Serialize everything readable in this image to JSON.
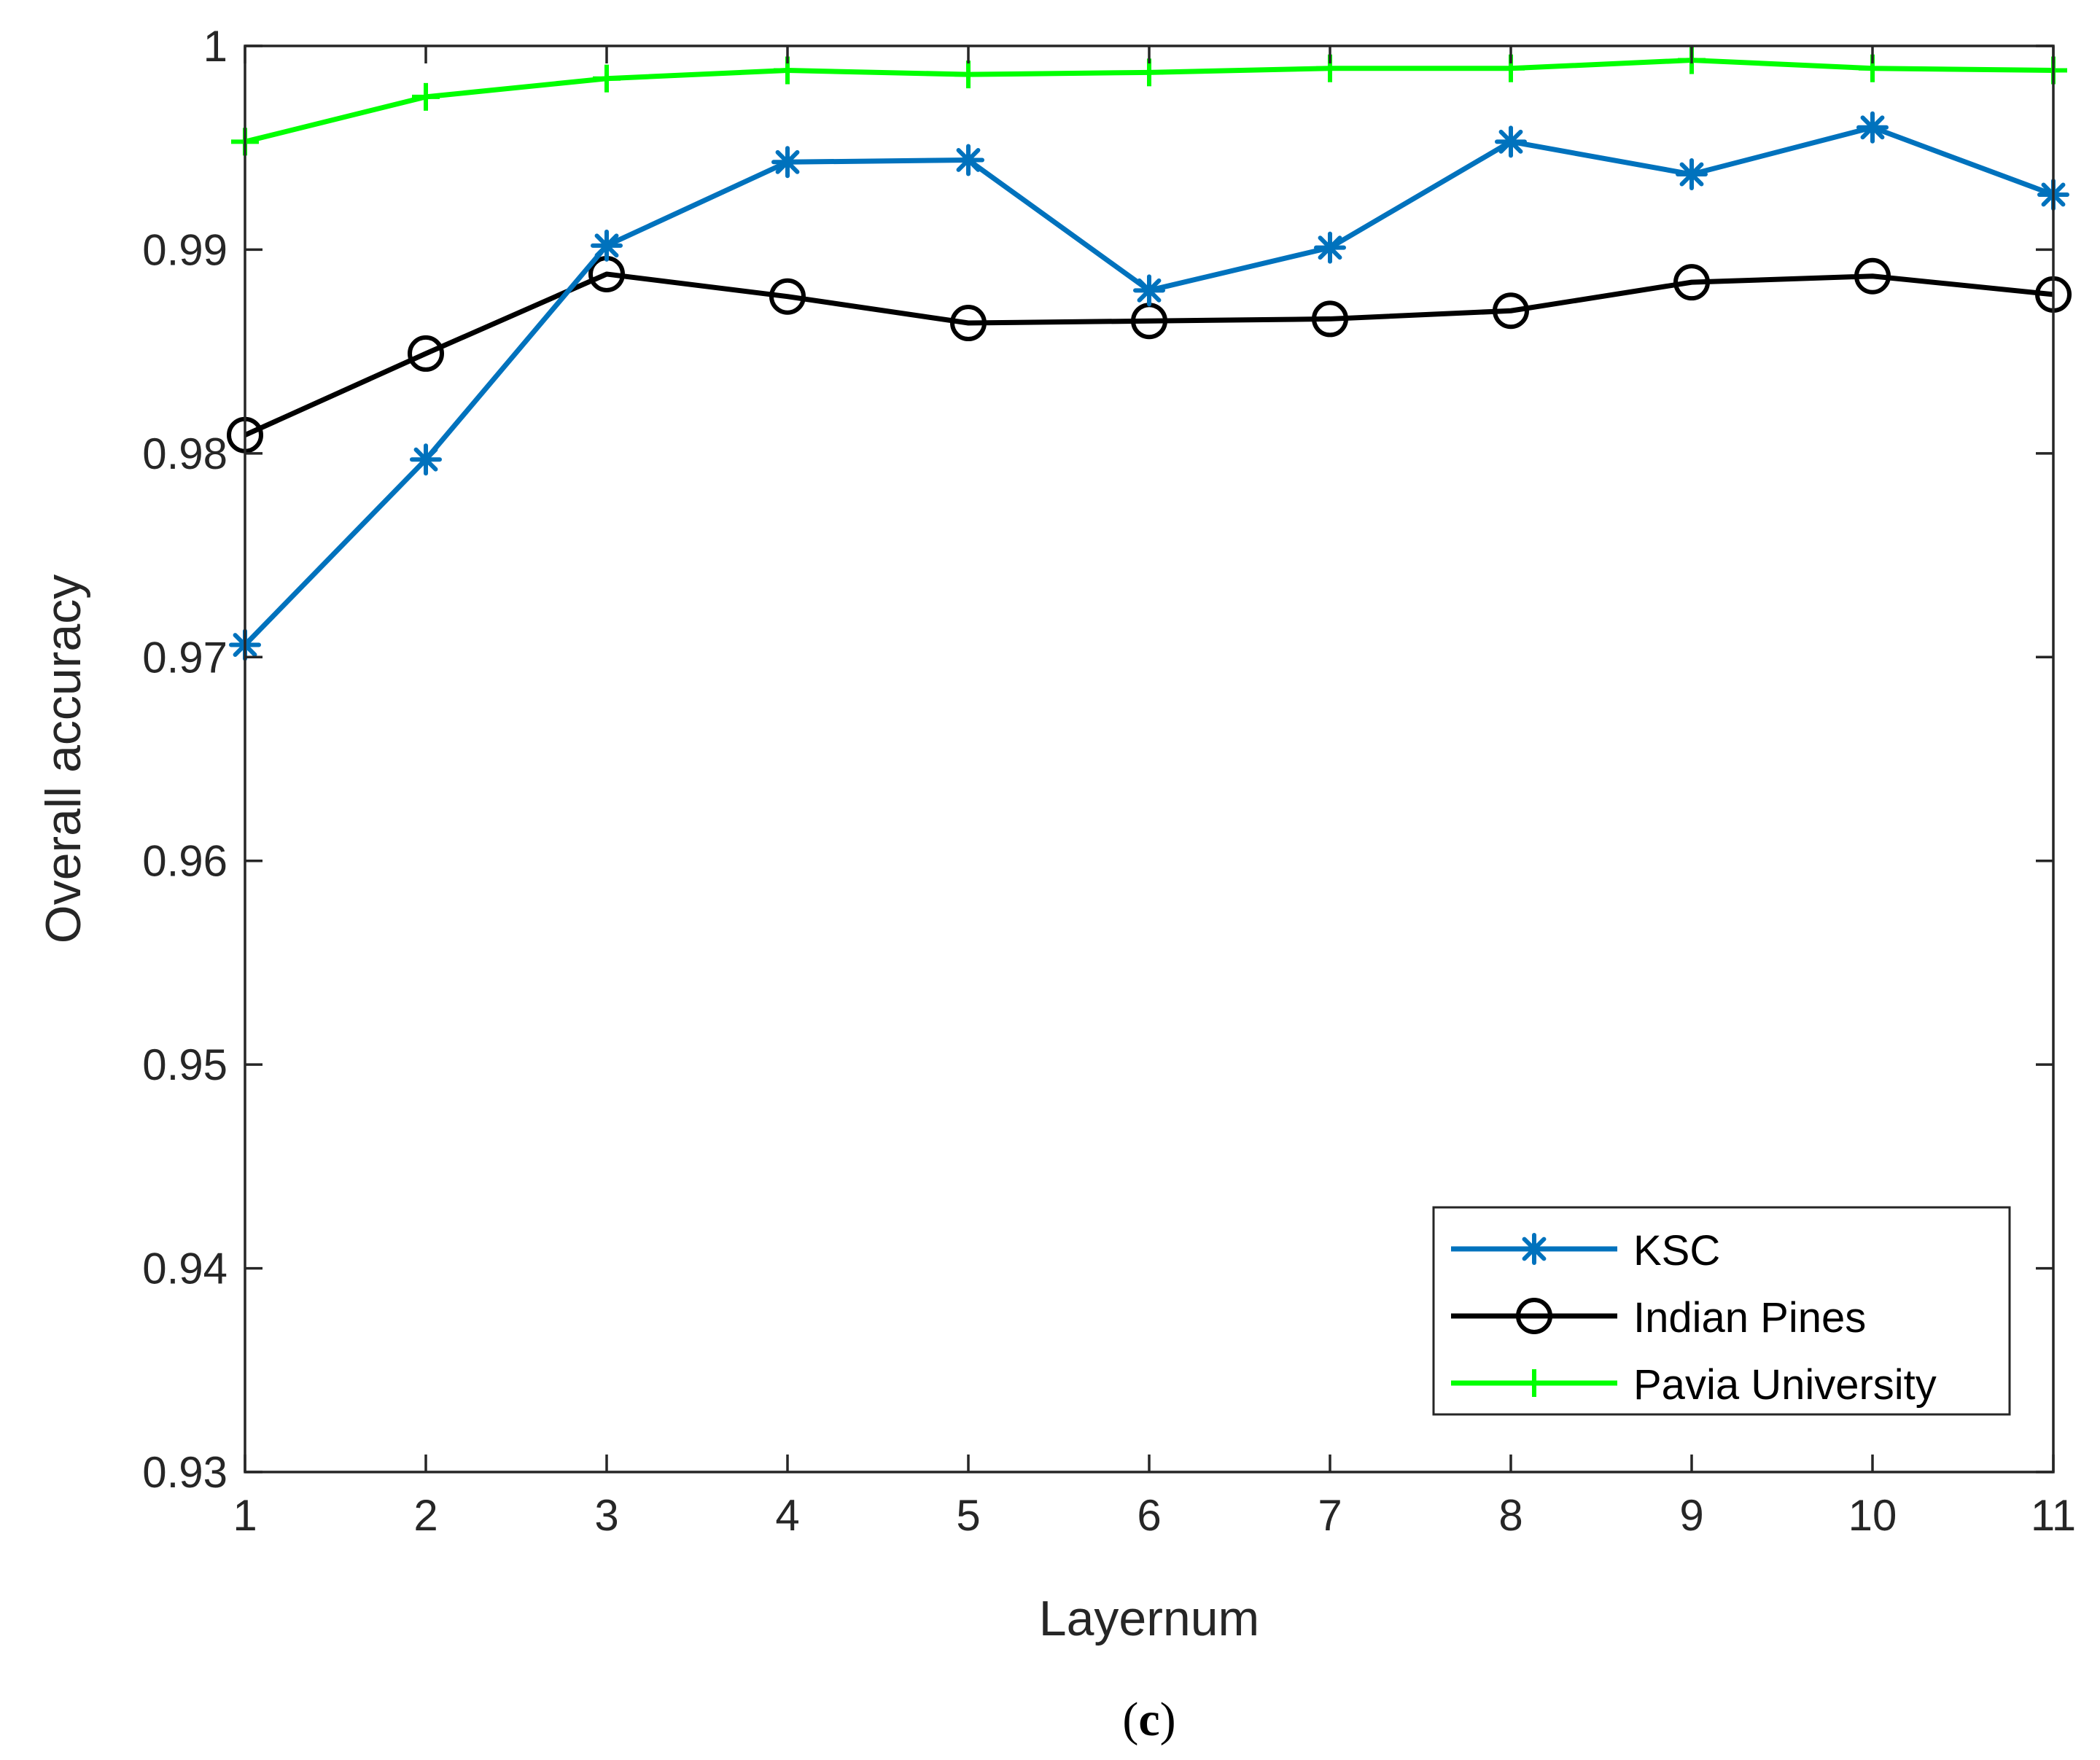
{
  "caption": {
    "open": "(",
    "letter": "c",
    "close": ")"
  },
  "chart_data": {
    "type": "line",
    "xlabel": "Layernum",
    "ylabel": "Overall accuracy",
    "x": [
      1,
      2,
      3,
      4,
      5,
      6,
      7,
      8,
      9,
      10,
      11
    ],
    "xlim": [
      1,
      11
    ],
    "ylim": [
      0.93,
      1
    ],
    "xticks": [
      1,
      2,
      3,
      4,
      5,
      6,
      7,
      8,
      9,
      10,
      11
    ],
    "yticks": [
      0.93,
      0.94,
      0.95,
      0.96,
      0.97,
      0.98,
      0.99,
      1
    ],
    "ytick_labels": [
      "0.93",
      "0.94",
      "0.95",
      "0.96",
      "0.97",
      "0.98",
      "0.99",
      "1"
    ],
    "grid": false,
    "legend_position": "bottom-right",
    "series": [
      {
        "name": "KSC",
        "color": "#0072BD",
        "marker": "asterisk",
        "values": [
          0.9706,
          0.9797,
          0.9902,
          0.9943,
          0.9944,
          0.988,
          0.9901,
          0.9953,
          0.9937,
          0.996,
          0.9927
        ]
      },
      {
        "name": "Indian Pines",
        "color": "#000000",
        "marker": "circle",
        "values": [
          0.9809,
          0.9849,
          0.9888,
          0.9877,
          0.9864,
          0.9865,
          0.9866,
          0.987,
          0.9884,
          0.9887,
          0.9878
        ]
      },
      {
        "name": "Pavia University",
        "color": "#00FF00",
        "marker": "plus",
        "values": [
          0.9953,
          0.9975,
          0.9984,
          0.9988,
          0.9986,
          0.9987,
          0.9989,
          0.9989,
          0.9993,
          0.9989,
          0.9988
        ]
      }
    ]
  }
}
